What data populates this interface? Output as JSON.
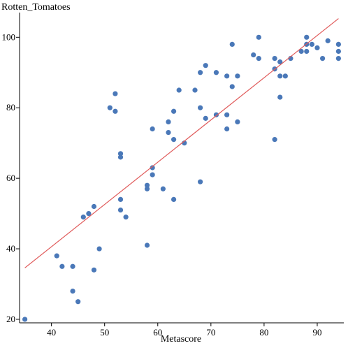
{
  "chart_data": {
    "type": "scatter",
    "title": "",
    "xlabel": "Metascore",
    "ylabel": "Rotten_Tomatoes",
    "xlim": [
      34,
      95
    ],
    "ylim": [
      19,
      107
    ],
    "xticks": [
      40,
      50,
      60,
      70,
      80,
      90
    ],
    "yticks": [
      20,
      40,
      60,
      80,
      100
    ],
    "grid": false,
    "point_color": "#4a78b8",
    "trendline": {
      "color": "#e05a5a",
      "x": [
        35,
        94
      ],
      "y": [
        34.6,
        105.3
      ]
    },
    "points": [
      {
        "x": 35,
        "y": 20
      },
      {
        "x": 41,
        "y": 38
      },
      {
        "x": 42,
        "y": 35
      },
      {
        "x": 44,
        "y": 35
      },
      {
        "x": 44,
        "y": 28
      },
      {
        "x": 45,
        "y": 25
      },
      {
        "x": 46,
        "y": 49
      },
      {
        "x": 47,
        "y": 50
      },
      {
        "x": 48,
        "y": 52
      },
      {
        "x": 48,
        "y": 34
      },
      {
        "x": 49,
        "y": 40
      },
      {
        "x": 51,
        "y": 80
      },
      {
        "x": 52,
        "y": 84
      },
      {
        "x": 52,
        "y": 79
      },
      {
        "x": 53,
        "y": 67
      },
      {
        "x": 53,
        "y": 66
      },
      {
        "x": 53,
        "y": 54
      },
      {
        "x": 53,
        "y": 51
      },
      {
        "x": 54,
        "y": 49
      },
      {
        "x": 58,
        "y": 58
      },
      {
        "x": 58,
        "y": 57
      },
      {
        "x": 58,
        "y": 41
      },
      {
        "x": 59,
        "y": 74
      },
      {
        "x": 59,
        "y": 63
      },
      {
        "x": 59,
        "y": 61
      },
      {
        "x": 61,
        "y": 57
      },
      {
        "x": 62,
        "y": 76
      },
      {
        "x": 62,
        "y": 73
      },
      {
        "x": 63,
        "y": 79
      },
      {
        "x": 63,
        "y": 71
      },
      {
        "x": 63,
        "y": 54
      },
      {
        "x": 64,
        "y": 85
      },
      {
        "x": 65,
        "y": 70
      },
      {
        "x": 67,
        "y": 85
      },
      {
        "x": 68,
        "y": 90
      },
      {
        "x": 68,
        "y": 80
      },
      {
        "x": 68,
        "y": 59
      },
      {
        "x": 69,
        "y": 92
      },
      {
        "x": 69,
        "y": 77
      },
      {
        "x": 71,
        "y": 90
      },
      {
        "x": 71,
        "y": 78
      },
      {
        "x": 73,
        "y": 89
      },
      {
        "x": 73,
        "y": 78
      },
      {
        "x": 73,
        "y": 74
      },
      {
        "x": 74,
        "y": 98
      },
      {
        "x": 74,
        "y": 86
      },
      {
        "x": 75,
        "y": 89
      },
      {
        "x": 75,
        "y": 76
      },
      {
        "x": 78,
        "y": 95
      },
      {
        "x": 79,
        "y": 100
      },
      {
        "x": 79,
        "y": 94
      },
      {
        "x": 82,
        "y": 94
      },
      {
        "x": 82,
        "y": 91
      },
      {
        "x": 82,
        "y": 71
      },
      {
        "x": 83,
        "y": 93
      },
      {
        "x": 83,
        "y": 89
      },
      {
        "x": 83,
        "y": 83
      },
      {
        "x": 84,
        "y": 89
      },
      {
        "x": 85,
        "y": 94
      },
      {
        "x": 87,
        "y": 96
      },
      {
        "x": 88,
        "y": 100
      },
      {
        "x": 88,
        "y": 98
      },
      {
        "x": 88,
        "y": 96
      },
      {
        "x": 89,
        "y": 98
      },
      {
        "x": 90,
        "y": 97
      },
      {
        "x": 91,
        "y": 94
      },
      {
        "x": 92,
        "y": 99
      },
      {
        "x": 94,
        "y": 98
      },
      {
        "x": 94,
        "y": 96
      },
      {
        "x": 94,
        "y": 94
      }
    ]
  }
}
